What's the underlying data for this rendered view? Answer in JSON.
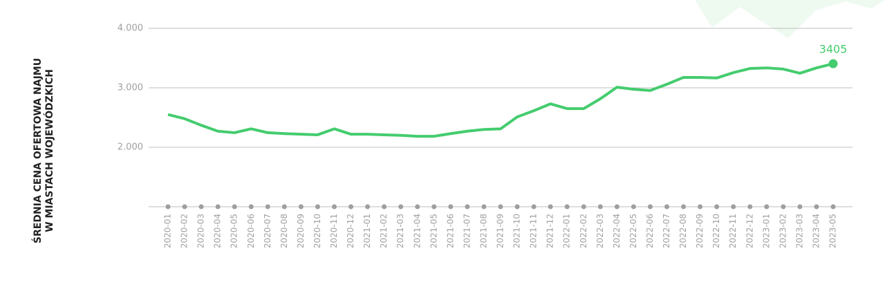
{
  "chart_data": {
    "type": "line",
    "y_label": [
      "ŚREDNIA CENA OFERTOWA NAJMU",
      "W MIASTACH WOJEWÓDZKICH"
    ],
    "categories": [
      "2020-01",
      "2020-02",
      "2020-03",
      "2020-04",
      "2020-05",
      "2020-06",
      "2020-07",
      "2020-08",
      "2020-09",
      "2020-10",
      "2020-11",
      "2020-12",
      "2021-01",
      "2021-02",
      "2021-03",
      "2021-04",
      "2021-05",
      "2021-06",
      "2021-07",
      "2021-08",
      "2021-09",
      "2021-10",
      "2021-11",
      "2021-12",
      "2022-01",
      "2022-02",
      "2022-03",
      "2022-04",
      "2022-05",
      "2022-06",
      "2022-07",
      "2022-08",
      "2022-09",
      "2022-10",
      "2022-11",
      "2022-12",
      "2023-01",
      "2023-02",
      "2023-03",
      "2023-04",
      "2023-05"
    ],
    "values": [
      2550,
      2480,
      2370,
      2270,
      2245,
      2310,
      2245,
      2230,
      2220,
      2210,
      2310,
      2220,
      2220,
      2210,
      2200,
      2185,
      2185,
      2230,
      2270,
      2300,
      2310,
      2510,
      2615,
      2730,
      2650,
      2650,
      2815,
      3010,
      2975,
      2955,
      3060,
      3175,
      3175,
      3165,
      3255,
      3325,
      3335,
      3315,
      3245,
      3335,
      3405
    ],
    "color": "#44cc6e",
    "ylim": [
      1000,
      4000
    ],
    "yticks": [
      {
        "value": 2000,
        "label": "2.000"
      },
      {
        "value": 3000,
        "label": "3.000"
      },
      {
        "value": 4000,
        "label": "4.000"
      }
    ],
    "grid": true
  }
}
